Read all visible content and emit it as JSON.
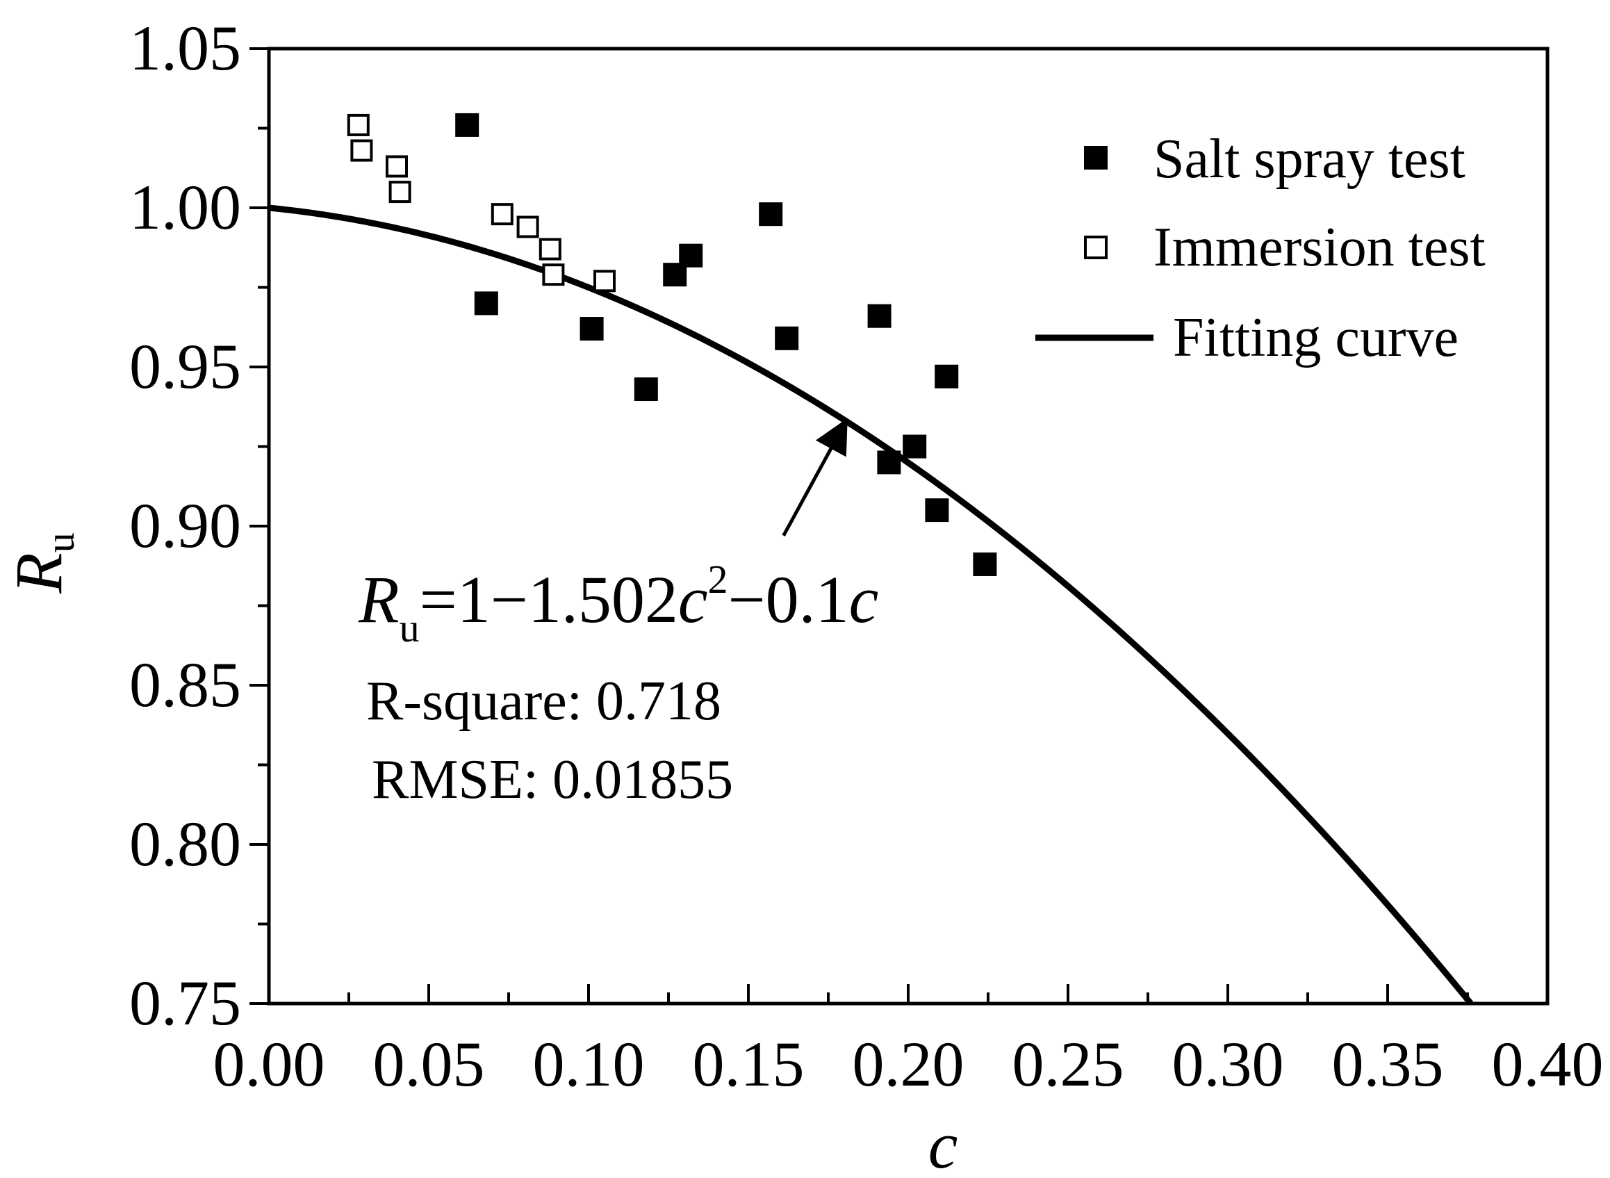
{
  "chart_data": {
    "type": "scatter",
    "title": "",
    "xlabel": "c",
    "ylabel_main": "R",
    "ylabel_sub": "u",
    "xlim": [
      0.0,
      0.4
    ],
    "ylim": [
      0.75,
      1.05
    ],
    "x_ticks": [
      0.0,
      0.05,
      0.1,
      0.15,
      0.2,
      0.25,
      0.3,
      0.35,
      0.4
    ],
    "x_tick_labels": [
      "0.00",
      "0.05",
      "0.10",
      "0.15",
      "0.20",
      "0.25",
      "0.30",
      "0.35",
      "0.40"
    ],
    "y_ticks": [
      0.75,
      0.8,
      0.85,
      0.9,
      0.95,
      1.0,
      1.05
    ],
    "y_tick_labels": [
      "0.75",
      "0.80",
      "0.85",
      "0.90",
      "0.95",
      "1.00",
      "1.05"
    ],
    "y_minor_ticks": [
      0.775,
      0.825,
      0.875,
      0.925,
      0.975,
      1.025
    ],
    "x_minor_ticks": [
      0.025,
      0.075,
      0.125,
      0.175,
      0.225,
      0.275,
      0.325,
      0.375
    ],
    "grid": false,
    "legend_position": "top-right",
    "series": [
      {
        "name": "Salt spray test",
        "marker": "filled-square",
        "points": [
          {
            "x": 0.062,
            "y": 1.026
          },
          {
            "x": 0.068,
            "y": 0.97
          },
          {
            "x": 0.101,
            "y": 0.962
          },
          {
            "x": 0.118,
            "y": 0.943
          },
          {
            "x": 0.127,
            "y": 0.979
          },
          {
            "x": 0.132,
            "y": 0.985
          },
          {
            "x": 0.157,
            "y": 0.998
          },
          {
            "x": 0.162,
            "y": 0.959
          },
          {
            "x": 0.191,
            "y": 0.966
          },
          {
            "x": 0.194,
            "y": 0.92
          },
          {
            "x": 0.202,
            "y": 0.925
          },
          {
            "x": 0.209,
            "y": 0.905
          },
          {
            "x": 0.212,
            "y": 0.947
          },
          {
            "x": 0.224,
            "y": 0.888
          }
        ]
      },
      {
        "name": "Immersion test",
        "marker": "open-square",
        "points": [
          {
            "x": 0.028,
            "y": 1.026
          },
          {
            "x": 0.029,
            "y": 1.018
          },
          {
            "x": 0.04,
            "y": 1.013
          },
          {
            "x": 0.041,
            "y": 1.005
          },
          {
            "x": 0.073,
            "y": 0.998
          },
          {
            "x": 0.081,
            "y": 0.994
          },
          {
            "x": 0.088,
            "y": 0.987
          },
          {
            "x": 0.089,
            "y": 0.979
          },
          {
            "x": 0.105,
            "y": 0.977
          }
        ]
      },
      {
        "name": "Fitting curve",
        "marker": "line",
        "formula": {
          "a": 1.0,
          "b2": -1.502,
          "b1": -0.1
        },
        "x_range": [
          0.0,
          0.376
        ]
      }
    ],
    "annotations": {
      "equation": {
        "lhs": "R",
        "lhs_sub": "u",
        "text1": "=1−1.502",
        "var1": "c",
        "sup": "2",
        "text2": "−0.1",
        "var2": "c"
      },
      "r_square": "R-square: 0.718",
      "rmse": "RMSE: 0.01855",
      "arrow": {
        "from": {
          "x": 0.161,
          "y": 0.897
        },
        "to": {
          "x": 0.18,
          "y": 0.932
        }
      }
    },
    "colors": {
      "axis": "#000000",
      "marker": "#000000",
      "curve": "#000000",
      "background": "#ffffff"
    }
  }
}
